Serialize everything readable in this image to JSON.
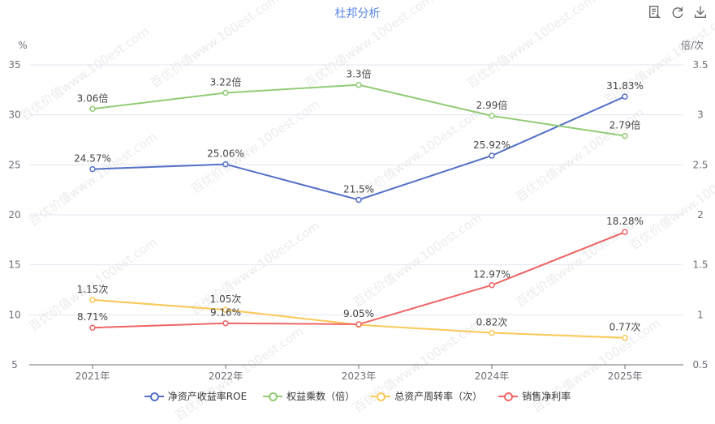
{
  "header": {
    "title": "杜邦分析"
  },
  "toolbar": {
    "icons": [
      "data-view-icon",
      "refresh-icon",
      "download-icon"
    ]
  },
  "watermark": {
    "text": "百优价值www.100est.com"
  },
  "chart_data": {
    "type": "line",
    "categories": [
      "2021年",
      "2022年",
      "2023年",
      "2024年",
      "2025年"
    ],
    "y_left": {
      "unit": "%",
      "ticks": [
        "5",
        "10",
        "15",
        "20",
        "25",
        "30",
        "35"
      ],
      "min": 5,
      "max": 35
    },
    "y_right": {
      "unit": "倍/次",
      "ticks": [
        "0.5",
        "1",
        "1.5",
        "2",
        "2.5",
        "3",
        "3.5"
      ],
      "min": 0.5,
      "max": 3.5
    },
    "grid": true,
    "legend_position": "bottom",
    "series": [
      {
        "name": "净资产收益率ROE",
        "axis": "left",
        "color": "#5470c6",
        "values": [
          24.57,
          25.06,
          21.5,
          25.92,
          31.83
        ],
        "labels": [
          "24.57%",
          "25.06%",
          "21.5%",
          "25.92%",
          "31.83%"
        ]
      },
      {
        "name": "权益乘数（倍）",
        "axis": "right",
        "color": "#91cc75",
        "values": [
          3.06,
          3.22,
          3.3,
          2.99,
          2.79
        ],
        "labels": [
          "3.06倍",
          "3.22倍",
          "3.3倍",
          "2.99倍",
          "2.79倍"
        ]
      },
      {
        "name": "总资产周转率（次）",
        "axis": "right",
        "color": "#fac858",
        "values": [
          1.15,
          1.05,
          0.9,
          0.82,
          0.77
        ],
        "labels": [
          "1.15次",
          "1.05次",
          "",
          "0.82次",
          "0.77次"
        ]
      },
      {
        "name": "销售净利率",
        "axis": "left",
        "color": "#ee6666",
        "values": [
          8.71,
          9.16,
          9.05,
          12.97,
          18.28
        ],
        "labels": [
          "8.71%",
          "9.16%",
          "9.05%",
          "12.97%",
          "18.28%"
        ]
      }
    ]
  }
}
